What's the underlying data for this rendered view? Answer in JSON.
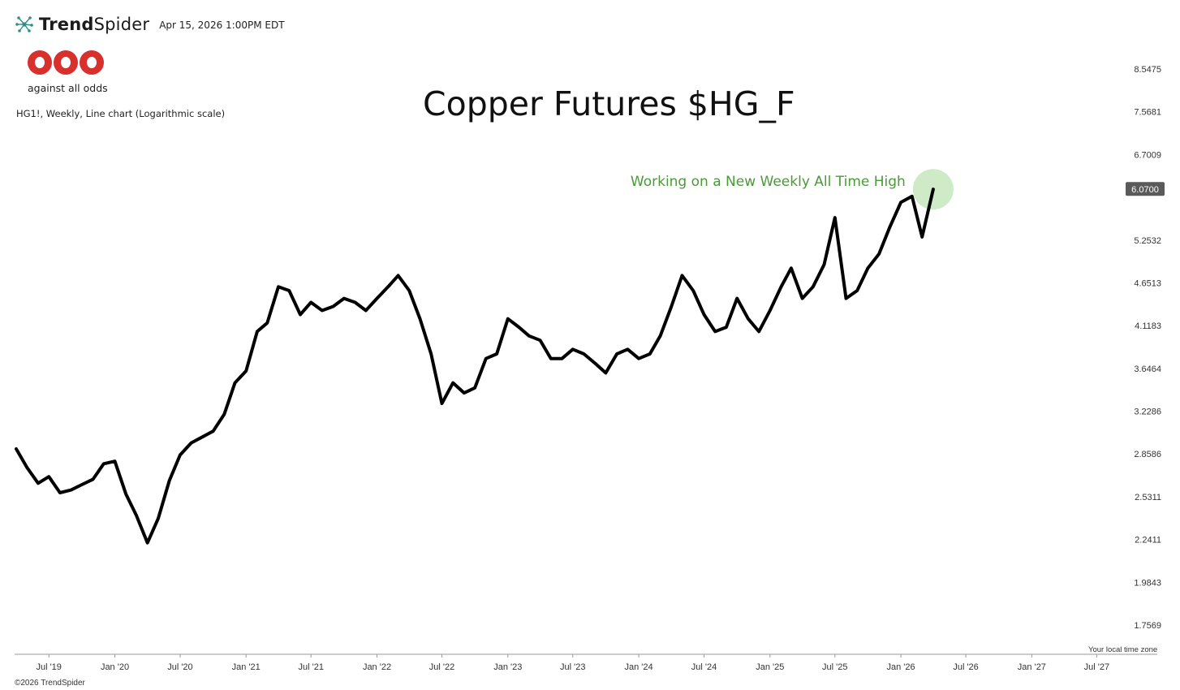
{
  "header": {
    "brand_bold": "Trend",
    "brand_light": "Spider",
    "timestamp": "Apr 15, 2026 1:00PM EDT",
    "logo_text": "against all odds",
    "description": "HG1!, Weekly, Line chart (Logarithmic scale)",
    "footer": "©2026 TrendSpider",
    "timezone_note": "Your local time zone"
  },
  "colors": {
    "line": "#000000",
    "annotation": "#4a9a3a",
    "highlight": "#c7e6bc",
    "logo": "#d8302c",
    "price_badge": "#5a5a5a"
  },
  "chart_data": {
    "type": "line",
    "title": "Copper Futures $HG_F",
    "scale": "log",
    "ylim": [
      1.7569,
      8.5475
    ],
    "y_ticks": [
      "8.5475",
      "7.5681",
      "6.7009",
      "5.2532",
      "4.6513",
      "4.1183",
      "3.6464",
      "3.2286",
      "2.8586",
      "2.5311",
      "2.2411",
      "1.9843",
      "1.7569"
    ],
    "x_ticks": [
      "Jul '19",
      "Jan '20",
      "Jul '20",
      "Jan '21",
      "Jul '21",
      "Jan '22",
      "Jul '22",
      "Jan '23",
      "Jul '23",
      "Jan '24",
      "Jul '24",
      "Jan '25",
      "Jul '25",
      "Jan '26",
      "Jul '26",
      "Jan '27",
      "Jul '27"
    ],
    "last_price": "6.0700",
    "annotation": "Working on a New Weekly All Time High",
    "grid": false,
    "series": [
      {
        "x": [
          "2019-04-01",
          "2019-05-01",
          "2019-06-01",
          "2019-07-01",
          "2019-08-01",
          "2019-09-01",
          "2019-10-01",
          "2019-11-01",
          "2019-12-01",
          "2020-01-01",
          "2020-02-01",
          "2020-03-01",
          "2020-04-01",
          "2020-05-01",
          "2020-06-01",
          "2020-07-01",
          "2020-08-01",
          "2020-09-01",
          "2020-10-01",
          "2020-11-01",
          "2020-12-01",
          "2021-01-01",
          "2021-02-01",
          "2021-03-01",
          "2021-04-01",
          "2021-05-01",
          "2021-06-01",
          "2021-07-01",
          "2021-08-01",
          "2021-09-01",
          "2021-10-01",
          "2021-11-01",
          "2021-12-01",
          "2022-01-01",
          "2022-02-01",
          "2022-03-01",
          "2022-04-01",
          "2022-05-01",
          "2022-06-01",
          "2022-07-01",
          "2022-08-01",
          "2022-09-01",
          "2022-10-01",
          "2022-11-01",
          "2022-12-01",
          "2023-01-01",
          "2023-02-01",
          "2023-03-01",
          "2023-04-01",
          "2023-05-01",
          "2023-06-01",
          "2023-07-01",
          "2023-08-01",
          "2023-09-01",
          "2023-10-01",
          "2023-11-01",
          "2023-12-01",
          "2024-01-01",
          "2024-02-01",
          "2024-03-01",
          "2024-04-01",
          "2024-05-01",
          "2024-06-01",
          "2024-07-01",
          "2024-08-01",
          "2024-09-01",
          "2024-10-01",
          "2024-11-01",
          "2024-12-01",
          "2025-01-01",
          "2025-02-01",
          "2025-03-01",
          "2025-04-01",
          "2025-05-01",
          "2025-06-01",
          "2025-07-01",
          "2025-08-01",
          "2025-09-01",
          "2025-10-01",
          "2025-11-01",
          "2025-12-01",
          "2026-01-01",
          "2026-02-01",
          "2026-03-01",
          "2026-04-01"
        ],
        "values": [
          2.9,
          2.75,
          2.63,
          2.68,
          2.56,
          2.58,
          2.62,
          2.66,
          2.78,
          2.8,
          2.55,
          2.4,
          2.22,
          2.38,
          2.65,
          2.85,
          2.95,
          3.0,
          3.05,
          3.2,
          3.5,
          3.62,
          4.05,
          4.15,
          4.6,
          4.55,
          4.25,
          4.4,
          4.3,
          4.35,
          4.45,
          4.4,
          4.3,
          4.45,
          4.6,
          4.75,
          4.55,
          4.2,
          3.8,
          3.3,
          3.5,
          3.4,
          3.45,
          3.75,
          3.8,
          4.2,
          4.1,
          4.0,
          3.95,
          3.75,
          3.75,
          3.85,
          3.8,
          3.7,
          3.6,
          3.8,
          3.85,
          3.75,
          3.8,
          4.0,
          4.35,
          4.75,
          4.55,
          4.25,
          4.05,
          4.1,
          4.45,
          4.2,
          4.05,
          4.3,
          4.6,
          4.85,
          4.45,
          4.6,
          4.9,
          5.6,
          4.45,
          4.55,
          4.85,
          5.05,
          5.45,
          5.85,
          5.95,
          5.3,
          6.07
        ]
      }
    ]
  }
}
